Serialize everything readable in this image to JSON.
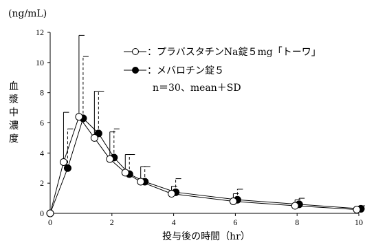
{
  "chart_data": {
    "type": "line",
    "title": "",
    "ylabel_unit": "(ng/mL)",
    "ylabel": "血漿中濃度",
    "xlabel": "投与後の時間（hr）",
    "xlim": [
      0,
      10
    ],
    "ylim": [
      0,
      12
    ],
    "xticks": [
      0,
      2,
      4,
      6,
      8,
      10
    ],
    "yticks": [
      0,
      2,
      4,
      6,
      8,
      10,
      12
    ],
    "grid": false,
    "legend_position": "top-right",
    "annotation": "n＝30、mean＋SD",
    "series": [
      {
        "name": "：プラバスタチンNa錠５mg「トーワ」",
        "marker": "open-circle",
        "error_bar_style": "solid",
        "x": [
          0,
          0.5,
          1,
          1.5,
          2,
          2.5,
          3,
          4,
          6,
          8,
          10
        ],
        "y": [
          0,
          3.4,
          6.4,
          5.0,
          3.6,
          2.7,
          2.1,
          1.3,
          0.8,
          0.5,
          0.25
        ],
        "sd": [
          0,
          3.3,
          5.4,
          3.1,
          1.8,
          1.2,
          1.0,
          0.5,
          0.5,
          0.4,
          0.2
        ]
      },
      {
        "name": "：メバロチン錠５",
        "marker": "filled-circle",
        "error_bar_style": "dashed",
        "x": [
          0,
          0.5,
          1,
          1.5,
          2,
          2.5,
          3,
          4,
          6,
          8,
          10
        ],
        "y": [
          0,
          3.0,
          6.3,
          5.3,
          3.7,
          2.6,
          2.1,
          1.4,
          0.9,
          0.6,
          0.3
        ],
        "sd": [
          0,
          2.6,
          4.1,
          2.8,
          1.9,
          1.3,
          1.0,
          0.9,
          0.7,
          0.4,
          0.2
        ]
      }
    ]
  }
}
